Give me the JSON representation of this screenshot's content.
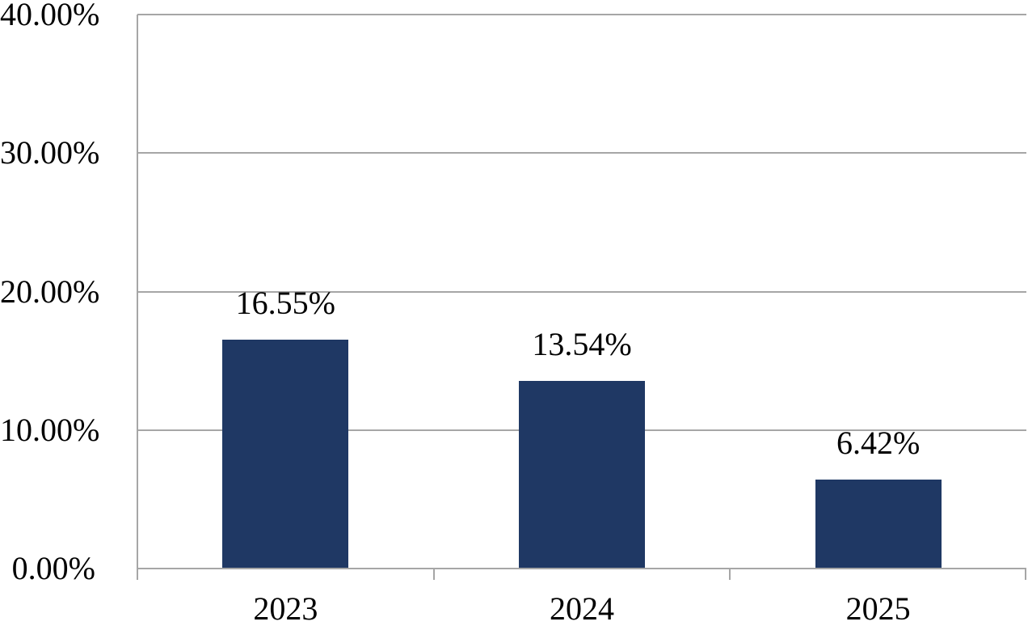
{
  "chart_data": {
    "type": "bar",
    "categories": [
      "2023",
      "2024",
      "2025"
    ],
    "values": [
      16.55,
      13.54,
      6.42
    ],
    "value_labels": [
      "16.55%",
      "13.54%",
      "6.42%"
    ],
    "ytick_labels": [
      "0.00%",
      "10.00%",
      "20.00%",
      "30.00%",
      "40.00%"
    ],
    "ylim": [
      0,
      40
    ],
    "title": "",
    "xlabel": "",
    "ylabel": "",
    "grid": true,
    "legend": false,
    "bar_color": "#1F3864",
    "axis_color": "#A6A6A6",
    "text_color": "#000000"
  }
}
